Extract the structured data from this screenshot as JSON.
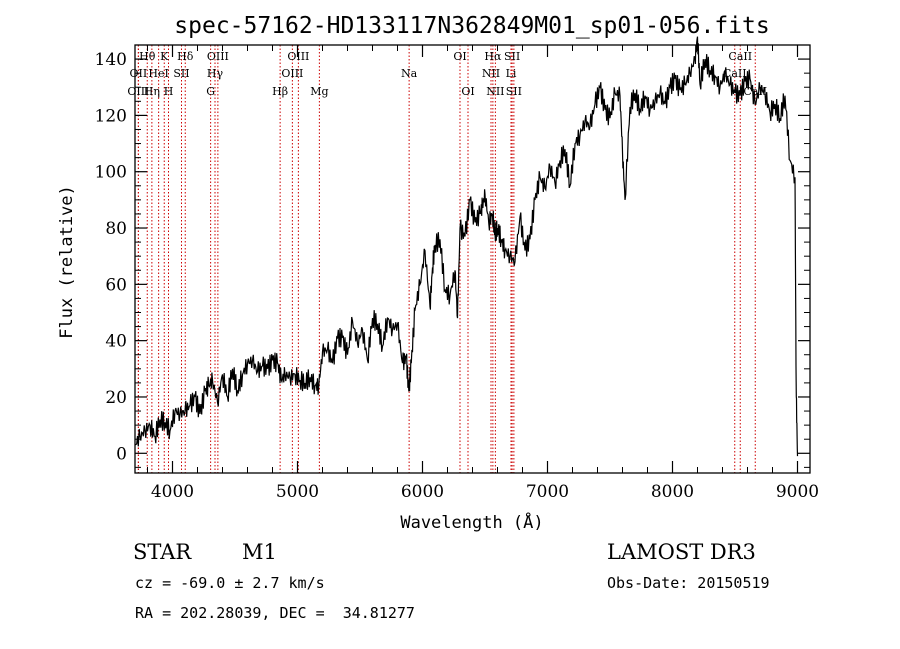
{
  "chart_data": {
    "type": "line",
    "title": "spec-57162-HD133117N362849M01_sp01-056.fits",
    "xlabel": "Wavelength (Å)",
    "ylabel": "Flux (relative)",
    "xlim": [
      3700,
      9100
    ],
    "ylim": [
      -7,
      145
    ],
    "xticks": [
      4000,
      5000,
      6000,
      7000,
      8000,
      9000
    ],
    "yticks": [
      0,
      20,
      40,
      60,
      80,
      100,
      120,
      140
    ],
    "grid": false,
    "series": [
      {
        "x": [
          3700,
          3740,
          3780,
          3820,
          3860,
          3900,
          3940,
          3980,
          4020,
          4060,
          4100,
          4140,
          4180,
          4220,
          4260,
          4290,
          4320,
          4360,
          4400,
          4440,
          4480,
          4520,
          4560,
          4600,
          4640,
          4680,
          4720,
          4760,
          4800,
          4840,
          4870,
          4900,
          4940,
          4980,
          5020,
          5060,
          5100,
          5140,
          5170,
          5200,
          5240,
          5280,
          5320,
          5360,
          5400,
          5440,
          5480,
          5520,
          5560,
          5600,
          5640,
          5680,
          5720,
          5760,
          5800,
          5840,
          5870,
          5890,
          5910,
          5940,
          5980,
          6020,
          6060,
          6080,
          6100,
          6140,
          6180,
          6220,
          6260,
          6280,
          6300,
          6340,
          6380,
          6420,
          6460,
          6480,
          6500,
          6530,
          6560,
          6580,
          6600,
          6630,
          6660,
          6700,
          6740,
          6780,
          6820,
          6860,
          6900,
          6940,
          6980,
          7020,
          7060,
          7100,
          7140,
          7180,
          7220,
          7260,
          7300,
          7340,
          7380,
          7420,
          7460,
          7500,
          7540,
          7580,
          7600,
          7620,
          7660,
          7700,
          7740,
          7780,
          7820,
          7860,
          7900,
          7940,
          7980,
          8020,
          8060,
          8100,
          8140,
          8180,
          8200,
          8220,
          8260,
          8300,
          8340,
          8380,
          8420,
          8460,
          8500,
          8540,
          8580,
          8620,
          8660,
          8700,
          8740,
          8780,
          8820,
          8860,
          8900,
          8940,
          8980,
          8990,
          9000
        ],
        "y": [
          3,
          6,
          8,
          10,
          6,
          12,
          11,
          8,
          15,
          14,
          15,
          17,
          20,
          14,
          22,
          24,
          26,
          18,
          28,
          20,
          30,
          22,
          28,
          32,
          33,
          29,
          31,
          30,
          33,
          32,
          26,
          28,
          27,
          28,
          26,
          25,
          27,
          24,
          24,
          36,
          37,
          32,
          41,
          41,
          35,
          47,
          39,
          44,
          33,
          48,
          46,
          38,
          48,
          44,
          46,
          32,
          34,
          22,
          32,
          51,
          60,
          72,
          52,
          66,
          74,
          76,
          58,
          56,
          65,
          48,
          80,
          77,
          90,
          82,
          85,
          88,
          92,
          82,
          85,
          78,
          80,
          76,
          72,
          70,
          68,
          84,
          72,
          76,
          90,
          98,
          94,
          102,
          96,
          104,
          108,
          95,
          110,
          113,
          118,
          116,
          124,
          130,
          122,
          119,
          128,
          127,
          107,
          90,
          123,
          128,
          122,
          127,
          122,
          125,
          128,
          124,
          130,
          133,
          129,
          131,
          135,
          140,
          148,
          131,
          140,
          136,
          134,
          130,
          135,
          131,
          128,
          127,
          132,
          133,
          124,
          130,
          128,
          121,
          124,
          119,
          127,
          104,
          98,
          20,
          -1
        ]
      }
    ],
    "spectral_lines": [
      {
        "name": "Hθ",
        "wl": 3798,
        "row": 0
      },
      {
        "name": "OII",
        "wl": 3727,
        "row": 1
      },
      {
        "name": "OIII",
        "wl": 3727,
        "row": 2
      },
      {
        "name": "K",
        "wl": 3934,
        "row": 0
      },
      {
        "name": "HeI",
        "wl": 3889,
        "row": 1
      },
      {
        "name": "Hη",
        "wl": 3835,
        "row": 2
      },
      {
        "name": "Hδ",
        "wl": 4102,
        "row": 0
      },
      {
        "name": "SII",
        "wl": 4072,
        "row": 1
      },
      {
        "name": "H",
        "wl": 3968,
        "row": 2
      },
      {
        "name": "OIII",
        "wl": 4363,
        "row": 0
      },
      {
        "name": "Hγ",
        "wl": 4340,
        "row": 1
      },
      {
        "name": "G",
        "wl": 4305,
        "row": 2
      },
      {
        "name": "Hβ",
        "wl": 4861,
        "row": 2
      },
      {
        "name": "OIII",
        "wl": 5007,
        "row": 0
      },
      {
        "name": "OIII",
        "wl": 4959,
        "row": 1
      },
      {
        "name": "Mg",
        "wl": 5175,
        "row": 2
      },
      {
        "name": "Na",
        "wl": 5893,
        "row": 1
      },
      {
        "name": "OI",
        "wl": 6300,
        "row": 0
      },
      {
        "name": "OI",
        "wl": 6364,
        "row": 2
      },
      {
        "name": "Hα",
        "wl": 6563,
        "row": 0
      },
      {
        "name": "NII",
        "wl": 6548,
        "row": 1
      },
      {
        "name": "NII",
        "wl": 6583,
        "row": 2
      },
      {
        "name": "SII",
        "wl": 6717,
        "row": 0
      },
      {
        "name": "Li",
        "wl": 6708,
        "row": 1
      },
      {
        "name": "SII",
        "wl": 6731,
        "row": 2
      },
      {
        "name": "CaII",
        "wl": 8542,
        "row": 0
      },
      {
        "name": "CaII",
        "wl": 8498,
        "row": 1
      },
      {
        "name": "CaII",
        "wl": 8662,
        "row": 2
      }
    ],
    "line_color": "#000000",
    "marker_color": "#cc0000"
  },
  "info": {
    "class": "STAR",
    "subclass": "M1",
    "survey": "LAMOST DR3",
    "cz": "cz = -69.0 ± 2.7 km/s",
    "obs_date": "Obs-Date: 20150519",
    "radec": "RA = 202.28039, DEC =  34.81277"
  }
}
